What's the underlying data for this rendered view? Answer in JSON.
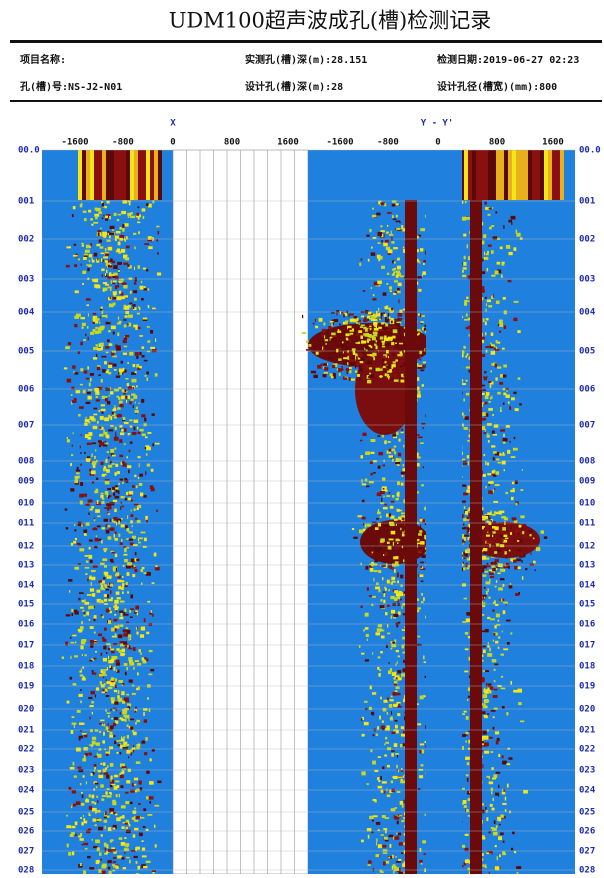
{
  "title": "UDM100超声波成孔(槽)检测记录",
  "header": {
    "row1": [
      "项目名称:",
      "实测孔(槽)深(m):28.151",
      "检测日期:2019-06-27 02:23"
    ],
    "row2": [
      "孔(槽)号:NS-J2-N01",
      "设计孔(槽)深(m):28",
      "设计孔径(槽宽)(mm):800"
    ]
  },
  "record": {
    "x_label": "X",
    "y_label": "Y - Y'",
    "x_ticks": [
      -1600,
      -800,
      0,
      800,
      1600
    ],
    "y_ticks": [
      -1600,
      -800,
      0,
      800,
      1600
    ],
    "depths": [
      "00.0",
      "001",
      "002",
      "003",
      "004",
      "005",
      "006",
      "007",
      "008",
      "009",
      "010",
      "011",
      "012",
      "013",
      "014",
      "015",
      "016",
      "017",
      "018",
      "019",
      "020",
      "021",
      "022",
      "023",
      "024",
      "025",
      "026",
      "027",
      "028"
    ]
  }
}
